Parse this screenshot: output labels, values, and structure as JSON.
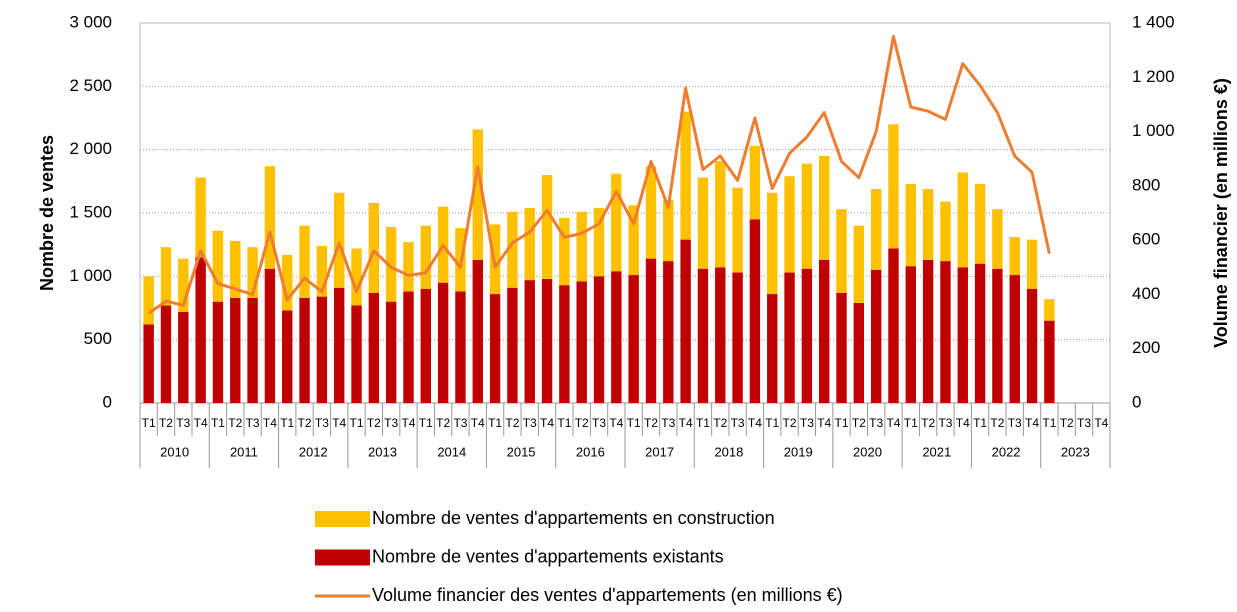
{
  "chart_data": {
    "type": "bar",
    "y_label": "Nombre de ventes",
    "y2_label": "Volume financier (en millions €)",
    "categories": [
      "T1",
      "T2",
      "T3",
      "T4",
      "T1",
      "T2",
      "T3",
      "T4",
      "T1",
      "T2",
      "T3",
      "T4",
      "T1",
      "T2",
      "T3",
      "T4",
      "T1",
      "T2",
      "T3",
      "T4",
      "T1",
      "T2",
      "T3",
      "T4",
      "T1",
      "T2",
      "T3",
      "T4",
      "T1",
      "T2",
      "T3",
      "T4",
      "T1",
      "T2",
      "T3",
      "T4",
      "T1",
      "T2",
      "T3",
      "T4",
      "T1",
      "T2",
      "T3",
      "T4",
      "T1",
      "T2",
      "T3",
      "T4",
      "T1",
      "T2",
      "T3",
      "T4",
      "T1",
      "T2",
      "T3",
      "T4"
    ],
    "category_groups": [
      "2010",
      "2011",
      "2012",
      "2013",
      "2014",
      "2015",
      "2016",
      "2017",
      "2018",
      "2019",
      "2020",
      "2021",
      "2022",
      "2023"
    ],
    "series": [
      {
        "name": "Nombre de ventes d'appartements en construction",
        "color": "#FFC000",
        "stacked": true,
        "values": [
          380,
          460,
          420,
          630,
          560,
          450,
          400,
          810,
          440,
          570,
          400,
          750,
          450,
          710,
          590,
          390,
          500,
          600,
          500,
          1030,
          550,
          600,
          570,
          820,
          530,
          550,
          540,
          770,
          550,
          730,
          480,
          1010,
          720,
          840,
          670,
          580,
          800,
          760,
          830,
          820,
          660,
          610,
          640,
          980,
          650,
          560,
          470,
          750,
          630,
          470,
          300,
          390,
          170,
          null,
          null,
          null
        ]
      },
      {
        "name": "Nombre de ventes d'appartements existants",
        "color": "#C00000",
        "stacked": true,
        "values": [
          620,
          770,
          720,
          1150,
          800,
          830,
          830,
          1060,
          730,
          830,
          840,
          910,
          770,
          870,
          800,
          880,
          900,
          950,
          880,
          1130,
          860,
          910,
          970,
          980,
          930,
          960,
          1000,
          1040,
          1010,
          1140,
          1120,
          1290,
          1060,
          1070,
          1030,
          1450,
          860,
          1030,
          1060,
          1130,
          870,
          790,
          1050,
          1220,
          1080,
          1130,
          1120,
          1070,
          1100,
          1060,
          1010,
          900,
          650,
          null,
          null,
          null
        ]
      },
      {
        "name": "Volume financier des ventes d'appartements (en millions €)",
        "color": "#ED7D31",
        "type": "line",
        "axis": "y2",
        "values": [
          330,
          375,
          360,
          560,
          440,
          420,
          400,
          630,
          380,
          460,
          410,
          590,
          410,
          560,
          500,
          470,
          480,
          580,
          500,
          870,
          500,
          590,
          630,
          710,
          610,
          625,
          660,
          780,
          660,
          890,
          720,
          1160,
          860,
          910,
          820,
          1050,
          790,
          920,
          980,
          1070,
          890,
          830,
          1000,
          1350,
          1090,
          1075,
          1045,
          1250,
          1170,
          1070,
          910,
          850,
          550,
          null,
          null,
          null
        ]
      }
    ],
    "ylim": [
      0,
      3000
    ],
    "yticks": [
      0,
      500,
      {
        "value": 1000,
        "label": "1 000"
      },
      {
        "value": 1500,
        "label": "1 500"
      },
      {
        "value": 2000,
        "label": "2 000"
      },
      {
        "value": 2500,
        "label": "2 500"
      },
      {
        "value": 3000,
        "label": "3 000"
      }
    ],
    "y2lim": [
      0,
      1400
    ],
    "y2ticks": [
      0,
      200,
      400,
      600,
      800,
      {
        "value": 1000,
        "label": "1 000"
      },
      {
        "value": 1200,
        "label": "1 200"
      },
      {
        "value": 1400,
        "label": "1 400"
      }
    ],
    "grid": true,
    "legend": "bottom"
  }
}
